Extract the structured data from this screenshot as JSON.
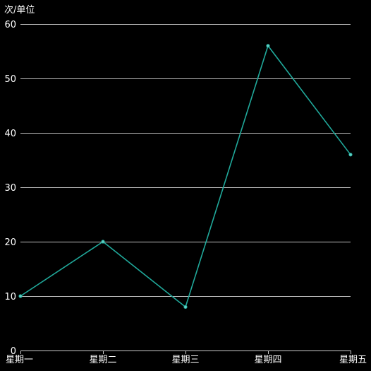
{
  "chart_data": {
    "type": "line",
    "y_unit_label": "次/单位",
    "categories": [
      "星期一",
      "星期二",
      "星期三",
      "星期四",
      "星期五"
    ],
    "series": [
      {
        "values": [
          10,
          20,
          8,
          56,
          36
        ]
      }
    ],
    "ylim": [
      0,
      60
    ],
    "y_ticks": [
      "0",
      "10",
      "20",
      "30",
      "40",
      "50",
      "60"
    ],
    "grid": true,
    "line_color": "#20a99b",
    "marker_color": "#5fd1c4",
    "grid_color": "#ffffff",
    "axis_color": "#cccccc",
    "background": "#000000"
  }
}
